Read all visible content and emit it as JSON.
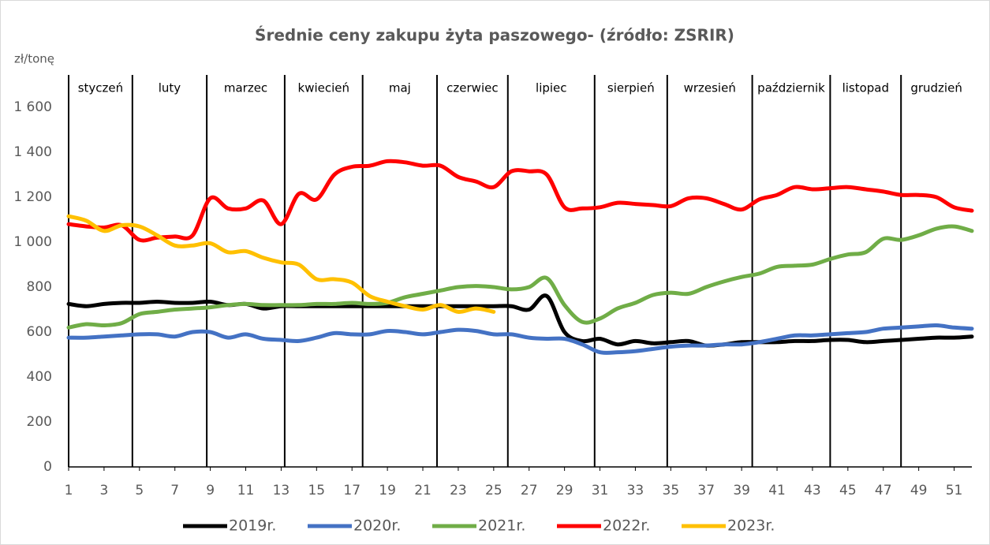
{
  "chart_data": {
    "type": "line",
    "title": "Średnie ceny zakupu żyta paszowego- (źródło: ZSRIR)",
    "y_axis_label": "zł/tonę",
    "x": [
      1,
      2,
      3,
      4,
      5,
      6,
      7,
      8,
      9,
      10,
      11,
      12,
      13,
      14,
      15,
      16,
      17,
      18,
      19,
      20,
      21,
      22,
      23,
      24,
      25,
      26,
      27,
      28,
      29,
      30,
      31,
      32,
      33,
      34,
      35,
      36,
      37,
      38,
      39,
      40,
      41,
      42,
      43,
      44,
      45,
      46,
      47,
      48,
      49,
      50,
      51,
      52
    ],
    "xlim": [
      1,
      52
    ],
    "xticks": [
      1,
      3,
      5,
      7,
      9,
      11,
      13,
      15,
      17,
      19,
      21,
      23,
      25,
      27,
      29,
      31,
      33,
      35,
      37,
      39,
      41,
      43,
      45,
      47,
      49,
      51
    ],
    "ylim": [
      0,
      1600
    ],
    "yticks": [
      0,
      200,
      400,
      600,
      800,
      {
        "value": 1000,
        "label": "1 000"
      },
      {
        "value": 1200,
        "label": "1 200"
      },
      {
        "value": 1400,
        "label": "1 400"
      },
      {
        "value": 1600,
        "label": "1 600"
      }
    ],
    "grid": false,
    "legend": "bottom",
    "month_labels": [
      "styczeń",
      "luty",
      "marzec",
      "kwiecień",
      "maj",
      "czerwiec",
      "lipiec",
      "sierpień",
      "wrzesień",
      "październik",
      "listopad",
      "grudzień"
    ],
    "month_dividers": [
      1,
      4.6,
      8.8,
      13.2,
      17.6,
      21.8,
      25.8,
      30.7,
      34.8,
      39.6,
      44,
      48
    ],
    "series": [
      {
        "name": "2019r.",
        "color": "#000000",
        "values": [
          725,
          715,
          725,
          730,
          730,
          735,
          730,
          730,
          735,
          720,
          725,
          705,
          715,
          715,
          715,
          715,
          715,
          715,
          715,
          715,
          715,
          715,
          715,
          715,
          715,
          715,
          700,
          760,
          600,
          560,
          570,
          545,
          560,
          550,
          555,
          560,
          540,
          545,
          555,
          555,
          555,
          560,
          560,
          565,
          565,
          555,
          560,
          565,
          570,
          575,
          575,
          580
        ]
      },
      {
        "name": "2020r.",
        "color": "#4472c4",
        "values": [
          575,
          575,
          580,
          585,
          590,
          590,
          580,
          600,
          600,
          575,
          590,
          570,
          565,
          560,
          575,
          595,
          590,
          590,
          605,
          600,
          590,
          600,
          610,
          605,
          590,
          590,
          575,
          570,
          570,
          545,
          510,
          510,
          515,
          525,
          535,
          540,
          540,
          545,
          545,
          555,
          570,
          585,
          585,
          590,
          595,
          600,
          615,
          620,
          625,
          630,
          620,
          615
        ]
      },
      {
        "name": "2021r.",
        "color": "#70ad47",
        "values": [
          620,
          635,
          630,
          640,
          680,
          690,
          700,
          705,
          710,
          720,
          725,
          720,
          720,
          720,
          725,
          725,
          730,
          725,
          730,
          755,
          770,
          785,
          800,
          805,
          800,
          790,
          800,
          840,
          720,
          645,
          660,
          705,
          730,
          765,
          775,
          770,
          800,
          825,
          845,
          860,
          890,
          895,
          900,
          925,
          945,
          955,
          1015,
          1010,
          1030,
          1060,
          1070,
          1050
        ]
      },
      {
        "name": "2022r.",
        "color": "#ff0000",
        "values": [
          1080,
          1070,
          1065,
          1075,
          1010,
          1020,
          1025,
          1030,
          1195,
          1150,
          1150,
          1185,
          1080,
          1215,
          1190,
          1300,
          1335,
          1340,
          1360,
          1355,
          1340,
          1340,
          1290,
          1270,
          1245,
          1315,
          1315,
          1300,
          1155,
          1150,
          1155,
          1175,
          1170,
          1165,
          1160,
          1195,
          1195,
          1170,
          1145,
          1190,
          1210,
          1245,
          1235,
          1240,
          1245,
          1235,
          1225,
          1210,
          1210,
          1200,
          1155,
          1140
        ]
      },
      {
        "name": "2023r.",
        "color": "#ffc000",
        "values": [
          1115,
          1095,
          1050,
          1075,
          1070,
          1030,
          985,
          985,
          995,
          955,
          960,
          930,
          910,
          900,
          835,
          835,
          820,
          760,
          735,
          715,
          700,
          720,
          690,
          705,
          690,
          null,
          null,
          null,
          null,
          null,
          null,
          null,
          null,
          null,
          null,
          null,
          null,
          null,
          null,
          null,
          null,
          null,
          null,
          null,
          null,
          null,
          null,
          null,
          null,
          null,
          null,
          null
        ]
      }
    ]
  }
}
